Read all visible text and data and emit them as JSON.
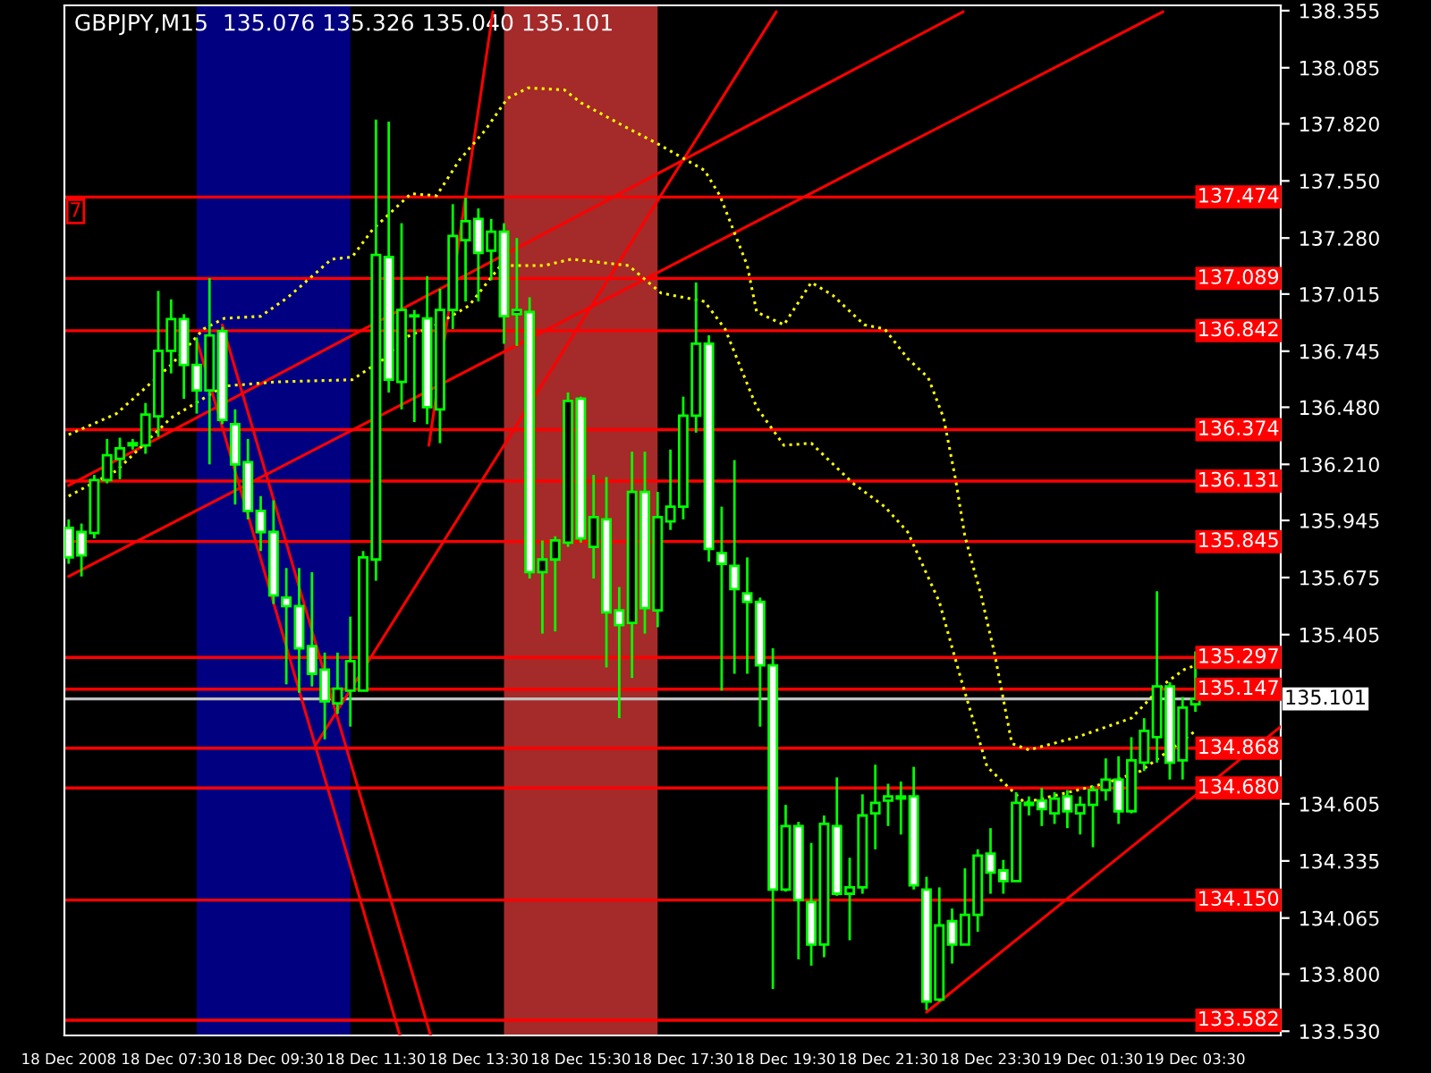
{
  "chart_data": {
    "type": "candlestick",
    "title": "GBPJPY,M15  135.076 135.326 135.040 135.101",
    "annotations": [
      "7"
    ],
    "xlim": [
      "2008-12-18T05:25",
      "2008-12-19T05:10"
    ],
    "xticks": [
      {
        "value": "2008-12-18T05:30",
        "label": "18 Dec 2008"
      },
      {
        "value": "2008-12-18T07:30",
        "label": "18 Dec 07:30"
      },
      {
        "value": "2008-12-18T09:30",
        "label": "18 Dec 09:30"
      },
      {
        "value": "2008-12-18T11:30",
        "label": "18 Dec 11:30"
      },
      {
        "value": "2008-12-18T13:30",
        "label": "18 Dec 13:30"
      },
      {
        "value": "2008-12-18T15:30",
        "label": "18 Dec 15:30"
      },
      {
        "value": "2008-12-18T17:30",
        "label": "18 Dec 17:30"
      },
      {
        "value": "2008-12-18T19:30",
        "label": "18 Dec 19:30"
      },
      {
        "value": "2008-12-18T21:30",
        "label": "18 Dec 21:30"
      },
      {
        "value": "2008-12-18T23:30",
        "label": "18 Dec 23:30"
      },
      {
        "value": "2008-12-19T01:30",
        "label": "19 Dec 01:30"
      },
      {
        "value": "2008-12-19T03:30",
        "label": "19 Dec 03:30"
      }
    ],
    "ylim": [
      133.51,
      138.38
    ],
    "yticks": [
      {
        "value": 138.355,
        "label": "138.355"
      },
      {
        "value": 138.085,
        "label": "138.085"
      },
      {
        "value": 137.82,
        "label": "137.820"
      },
      {
        "value": 137.55,
        "label": "137.550"
      },
      {
        "value": 137.28,
        "label": "137.280"
      },
      {
        "value": 137.015,
        "label": "137.015"
      },
      {
        "value": 136.745,
        "label": "136.745"
      },
      {
        "value": 136.48,
        "label": "136.480"
      },
      {
        "value": 136.21,
        "label": "136.210"
      },
      {
        "value": 135.945,
        "label": "135.945"
      },
      {
        "value": 135.675,
        "label": "135.675"
      },
      {
        "value": 135.405,
        "label": "135.405"
      },
      {
        "value": 134.605,
        "label": "134.605"
      },
      {
        "value": 134.335,
        "label": "134.335"
      },
      {
        "value": 134.065,
        "label": "134.065"
      },
      {
        "value": 133.8,
        "label": "133.800"
      },
      {
        "value": 133.53,
        "label": "133.530"
      }
    ],
    "grid": false,
    "legend": false,
    "bands": [
      {
        "axis": "x",
        "from": "2008-12-18T08:00",
        "to": "2008-12-18T11:00",
        "color": "#000080"
      },
      {
        "axis": "x",
        "from": "2008-12-18T14:00",
        "to": "2008-12-18T17:00",
        "color": "#a52a2a"
      }
    ],
    "ref_lines": [
      {
        "axis": "y",
        "value": 137.474,
        "label": "137.474",
        "color": "#ff0000"
      },
      {
        "axis": "y",
        "value": 137.089,
        "label": "137.089",
        "color": "#ff0000"
      },
      {
        "axis": "y",
        "value": 136.842,
        "label": "136.842",
        "color": "#ff0000"
      },
      {
        "axis": "y",
        "value": 136.374,
        "label": "136.374",
        "color": "#ff0000"
      },
      {
        "axis": "y",
        "value": 136.131,
        "label": "136.131",
        "color": "#ff0000"
      },
      {
        "axis": "y",
        "value": 135.845,
        "label": "135.845",
        "color": "#ff0000"
      },
      {
        "axis": "y",
        "value": 135.297,
        "label": "135.297",
        "color": "#ff0000"
      },
      {
        "axis": "y",
        "value": 135.147,
        "label": "135.147",
        "color": "#ff0000"
      },
      {
        "axis": "y",
        "value": 135.101,
        "label": "135.101",
        "color": "#c0c0c0"
      },
      {
        "axis": "y",
        "value": 134.868,
        "label": "134.868",
        "color": "#ff0000"
      },
      {
        "axis": "y",
        "value": 134.68,
        "label": "134.680",
        "color": "#ff0000"
      },
      {
        "axis": "y",
        "value": 134.15,
        "label": "134.150",
        "color": "#ff0000"
      },
      {
        "axis": "y",
        "value": 133.582,
        "label": "133.582",
        "color": "#ff0000"
      }
    ],
    "series": [
      {
        "color": "#00ff00",
        "x": [
          "2008-12-18T05:30",
          "2008-12-18T05:45",
          "2008-12-18T06:00",
          "2008-12-18T06:15",
          "2008-12-18T06:30",
          "2008-12-18T06:45",
          "2008-12-18T07:00",
          "2008-12-18T07:15",
          "2008-12-18T07:30",
          "2008-12-18T07:45",
          "2008-12-18T08:00",
          "2008-12-18T08:15",
          "2008-12-18T08:30",
          "2008-12-18T08:45",
          "2008-12-18T09:00",
          "2008-12-18T09:15",
          "2008-12-18T09:30",
          "2008-12-18T09:45",
          "2008-12-18T10:00",
          "2008-12-18T10:15",
          "2008-12-18T10:30",
          "2008-12-18T10:45",
          "2008-12-18T11:00",
          "2008-12-18T11:15",
          "2008-12-18T11:30",
          "2008-12-18T11:45",
          "2008-12-18T12:00",
          "2008-12-18T12:15",
          "2008-12-18T12:30",
          "2008-12-18T12:45",
          "2008-12-18T13:00",
          "2008-12-18T13:15",
          "2008-12-18T13:30",
          "2008-12-18T13:45",
          "2008-12-18T14:00",
          "2008-12-18T14:15",
          "2008-12-18T14:30",
          "2008-12-18T14:45",
          "2008-12-18T15:00",
          "2008-12-18T15:15",
          "2008-12-18T15:30",
          "2008-12-18T15:45",
          "2008-12-18T16:00",
          "2008-12-18T16:15",
          "2008-12-18T16:30",
          "2008-12-18T16:45",
          "2008-12-18T17:00",
          "2008-12-18T17:15",
          "2008-12-18T17:30",
          "2008-12-18T17:45",
          "2008-12-18T18:00",
          "2008-12-18T18:15",
          "2008-12-18T18:30",
          "2008-12-18T18:45",
          "2008-12-18T19:00",
          "2008-12-18T19:15",
          "2008-12-18T19:30",
          "2008-12-18T19:45",
          "2008-12-18T20:00",
          "2008-12-18T20:15",
          "2008-12-18T20:30",
          "2008-12-18T20:45",
          "2008-12-18T21:00",
          "2008-12-18T21:15",
          "2008-12-18T21:30",
          "2008-12-18T21:45",
          "2008-12-18T22:00",
          "2008-12-18T22:15",
          "2008-12-18T22:30",
          "2008-12-18T22:45",
          "2008-12-18T23:00",
          "2008-12-18T23:15",
          "2008-12-18T23:30",
          "2008-12-18T23:45",
          "2008-12-19T00:00",
          "2008-12-19T00:15",
          "2008-12-19T00:30",
          "2008-12-19T00:45",
          "2008-12-19T01:00",
          "2008-12-19T01:15",
          "2008-12-19T01:30",
          "2008-12-19T01:45",
          "2008-12-19T02:00",
          "2008-12-19T02:15",
          "2008-12-19T02:30",
          "2008-12-19T02:45",
          "2008-12-19T03:00",
          "2008-12-19T03:15",
          "2008-12-19T03:30"
        ],
        "ohlc": [
          [
            135.91,
            135.95,
            135.74,
            135.77
          ],
          [
            135.89,
            135.93,
            135.68,
            135.78
          ],
          [
            135.885,
            136.16,
            135.86,
            136.136
          ],
          [
            136.136,
            136.33,
            136.12,
            136.253
          ],
          [
            136.236,
            136.336,
            136.14,
            136.286
          ],
          [
            136.3,
            136.33,
            136.28,
            136.31
          ],
          [
            136.3,
            136.5,
            136.26,
            136.445
          ],
          [
            136.437,
            137.03,
            136.34,
            136.747
          ],
          [
            136.747,
            136.99,
            136.64,
            136.897
          ],
          [
            136.897,
            136.92,
            136.52,
            136.68
          ],
          [
            136.68,
            136.81,
            136.45,
            136.56
          ],
          [
            136.56,
            137.09,
            136.21,
            136.82
          ],
          [
            136.84,
            136.86,
            136.4,
            136.42
          ],
          [
            136.4,
            136.47,
            136.02,
            136.21
          ],
          [
            136.22,
            136.33,
            135.95,
            135.99
          ],
          [
            135.99,
            136.06,
            135.8,
            135.89
          ],
          [
            135.89,
            136.04,
            135.55,
            135.59
          ],
          [
            135.58,
            135.72,
            135.17,
            135.54
          ],
          [
            135.54,
            135.72,
            135.13,
            135.34
          ],
          [
            135.35,
            135.7,
            135.16,
            135.22
          ],
          [
            135.24,
            135.32,
            134.91,
            135.09
          ],
          [
            135.08,
            135.32,
            135.03,
            135.15
          ],
          [
            135.14,
            135.49,
            134.97,
            135.28
          ],
          [
            135.14,
            135.8,
            135.14,
            135.77
          ],
          [
            135.76,
            137.84,
            135.66,
            137.2
          ],
          [
            137.19,
            137.83,
            136.55,
            136.61
          ],
          [
            136.6,
            137.35,
            136.47,
            136.94
          ],
          [
            136.91,
            136.94,
            136.41,
            136.91
          ],
          [
            136.9,
            137.1,
            136.4,
            136.48
          ],
          [
            136.47,
            137.04,
            136.31,
            136.94
          ],
          [
            136.94,
            137.44,
            136.85,
            137.29
          ],
          [
            137.27,
            137.47,
            136.98,
            137.36
          ],
          [
            137.37,
            137.42,
            136.98,
            137.21
          ],
          [
            137.22,
            137.37,
            137.08,
            137.31
          ],
          [
            137.31,
            137.35,
            136.78,
            136.91
          ],
          [
            136.92,
            137.28,
            136.77,
            136.94
          ],
          [
            136.93,
            137.0,
            135.67,
            135.7
          ],
          [
            135.7,
            135.85,
            135.41,
            135.76
          ],
          [
            135.76,
            135.87,
            135.42,
            135.85
          ],
          [
            135.84,
            136.55,
            135.82,
            136.51
          ],
          [
            136.52,
            136.53,
            135.84,
            135.86
          ],
          [
            135.82,
            136.16,
            135.67,
            135.96
          ],
          [
            135.95,
            136.15,
            135.25,
            135.51
          ],
          [
            135.52,
            135.63,
            135.01,
            135.45
          ],
          [
            135.46,
            136.27,
            135.2,
            136.08
          ],
          [
            136.08,
            136.27,
            135.41,
            135.53
          ],
          [
            135.52,
            136.08,
            135.44,
            135.96
          ],
          [
            135.94,
            136.28,
            135.9,
            136.01
          ],
          [
            136.01,
            136.53,
            135.95,
            136.44
          ],
          [
            136.44,
            137.07,
            136.36,
            136.78
          ],
          [
            136.78,
            136.82,
            135.75,
            135.81
          ],
          [
            135.79,
            136.01,
            135.14,
            135.74
          ],
          [
            135.73,
            136.23,
            135.22,
            135.62
          ],
          [
            135.6,
            135.77,
            135.22,
            135.56
          ],
          [
            135.56,
            135.58,
            134.97,
            135.26
          ],
          [
            135.26,
            135.34,
            133.73,
            134.2
          ],
          [
            134.2,
            134.6,
            134.19,
            134.5
          ],
          [
            134.5,
            134.52,
            133.87,
            134.15
          ],
          [
            134.14,
            134.42,
            133.84,
            133.94
          ],
          [
            133.94,
            134.55,
            133.88,
            134.51
          ],
          [
            134.5,
            134.73,
            134.17,
            134.18
          ],
          [
            134.18,
            134.35,
            133.96,
            134.21
          ],
          [
            134.21,
            134.65,
            134.18,
            134.55
          ],
          [
            134.56,
            134.79,
            134.39,
            134.61
          ],
          [
            134.62,
            134.7,
            134.5,
            134.64
          ],
          [
            134.63,
            134.71,
            134.46,
            134.64
          ],
          [
            134.64,
            134.78,
            134.2,
            134.22
          ],
          [
            134.2,
            134.26,
            133.63,
            133.67
          ],
          [
            133.68,
            134.21,
            133.67,
            134.03
          ],
          [
            134.05,
            134.11,
            133.85,
            133.94
          ],
          [
            133.94,
            134.3,
            133.94,
            134.08
          ],
          [
            134.08,
            134.39,
            134.0,
            134.36
          ],
          [
            134.37,
            134.49,
            134.18,
            134.28
          ],
          [
            134.29,
            134.34,
            134.18,
            134.24
          ],
          [
            134.24,
            134.66,
            134.24,
            134.61
          ],
          [
            134.6,
            134.64,
            134.55,
            134.61
          ],
          [
            134.62,
            134.68,
            134.5,
            134.58
          ],
          [
            134.56,
            134.66,
            134.51,
            134.63
          ],
          [
            134.64,
            134.67,
            134.49,
            134.57
          ],
          [
            134.56,
            134.64,
            134.46,
            134.6
          ],
          [
            134.6,
            134.69,
            134.4,
            134.67
          ],
          [
            134.67,
            134.82,
            134.62,
            134.72
          ],
          [
            134.72,
            134.83,
            134.51,
            134.57
          ],
          [
            134.57,
            134.92,
            134.56,
            134.81
          ],
          [
            134.8,
            135.01,
            134.76,
            134.95
          ],
          [
            134.92,
            135.61,
            134.8,
            135.16
          ],
          [
            135.16,
            135.18,
            134.72,
            134.8
          ],
          [
            134.81,
            135.11,
            134.72,
            135.06
          ],
          [
            135.076,
            135.326,
            135.04,
            135.101
          ]
        ]
      },
      {
        "type": "line",
        "color": "#ff0000",
        "line_style": "solid",
        "x": [
          "2008-12-18T05:30",
          "2008-12-18T22:58"
        ],
        "values": [
          136.11,
          138.35
        ]
      },
      {
        "type": "line",
        "color": "#ff0000",
        "line_style": "solid",
        "x": [
          "2008-12-18T05:30",
          "2008-12-19T02:52"
        ],
        "values": [
          135.68,
          138.35
        ]
      },
      {
        "type": "line",
        "color": "#ff0000",
        "line_style": "solid",
        "x": [
          "2008-12-18T12:32",
          "2008-12-18T13:47"
        ],
        "values": [
          136.3,
          138.35
        ]
      },
      {
        "type": "line",
        "color": "#ff0000",
        "line_style": "solid",
        "x": [
          "2008-12-18T10:19",
          "2008-12-18T19:19"
        ],
        "values": [
          134.88,
          138.35
        ]
      },
      {
        "type": "line",
        "color": "#ff0000",
        "line_style": "solid",
        "x": [
          "2008-12-18T08:00",
          "2008-12-18T11:58"
        ],
        "values": [
          136.8,
          133.51
        ]
      },
      {
        "type": "line",
        "color": "#ff0000",
        "line_style": "solid",
        "x": [
          "2008-12-18T08:30",
          "2008-12-18T12:34"
        ],
        "values": [
          136.87,
          133.51
        ]
      },
      {
        "type": "line",
        "color": "#ff0000",
        "line_style": "solid",
        "x": [
          "2008-12-18T22:15",
          "2008-12-19T05:10"
        ],
        "values": [
          133.62,
          134.97
        ]
      },
      {
        "type": "line",
        "color": "#ffff00",
        "line_style": "dotted",
        "x": [
          "2008-12-18T05:30",
          "2008-12-18T06:26",
          "2008-12-18T07:30",
          "2008-12-18T08:08",
          "2008-12-18T08:32",
          "2008-12-18T09:15",
          "2008-12-18T09:47",
          "2008-12-18T10:38",
          "2008-12-18T11:02",
          "2008-12-18T11:26",
          "2008-12-18T12:11",
          "2008-12-18T12:41",
          "2008-12-18T13:08",
          "2008-12-18T13:38",
          "2008-12-18T14:04",
          "2008-12-18T14:28",
          "2008-12-18T15:11",
          "2008-12-18T15:30",
          "2008-12-18T16:20",
          "2008-12-18T16:58",
          "2008-12-18T17:55",
          "2008-12-18T18:13",
          "2008-12-18T18:45",
          "2008-12-18T18:56",
          "2008-12-18T19:28",
          "2008-12-18T20:00",
          "2008-12-18T20:25",
          "2008-12-18T21:02",
          "2008-12-18T21:26",
          "2008-12-18T21:53",
          "2008-12-18T22:17",
          "2008-12-18T22:35",
          "2008-12-18T22:49",
          "2008-12-18T23:00",
          "2008-12-18T23:19",
          "2008-12-18T23:35",
          "2008-12-18T23:55",
          "2008-12-19T00:15",
          "2008-12-19T01:11",
          "2008-12-19T02:15",
          "2008-12-19T02:53",
          "2008-12-19T03:17",
          "2008-12-19T03:30"
        ],
        "values": [
          136.35,
          136.45,
          136.68,
          136.85,
          136.9,
          136.91,
          137.0,
          137.18,
          137.19,
          137.32,
          137.49,
          137.48,
          137.65,
          137.79,
          137.94,
          137.99,
          137.98,
          137.92,
          137.81,
          137.73,
          137.6,
          137.48,
          137.15,
          136.93,
          136.87,
          137.07,
          137.01,
          136.87,
          136.85,
          136.71,
          136.62,
          136.43,
          136.14,
          135.87,
          135.59,
          135.31,
          134.89,
          134.86,
          134.92,
          135.01,
          135.17,
          135.24,
          135.26
        ]
      },
      {
        "type": "line",
        "color": "#ffff00",
        "line_style": "dotted",
        "x": [
          "2008-12-18T05:30",
          "2008-12-18T06:26",
          "2008-12-18T07:30",
          "2008-12-18T08:32",
          "2008-12-18T09:34",
          "2008-12-18T11:02",
          "2008-12-18T11:40",
          "2008-12-18T12:04",
          "2008-12-18T12:41",
          "2008-12-18T13:19",
          "2008-12-18T13:56",
          "2008-12-18T14:47",
          "2008-12-18T15:19",
          "2008-12-18T16:26",
          "2008-12-18T17:04",
          "2008-12-18T17:55",
          "2008-12-18T18:19",
          "2008-12-18T18:56",
          "2008-12-18T19:28",
          "2008-12-18T20:00",
          "2008-12-18T20:49",
          "2008-12-18T21:26",
          "2008-12-18T21:53",
          "2008-12-18T22:30",
          "2008-12-18T22:55",
          "2008-12-18T23:26",
          "2008-12-19T00:10",
          "2008-12-19T01:43",
          "2008-12-19T02:26",
          "2008-12-19T03:17",
          "2008-12-19T03:30"
        ],
        "values": [
          136.06,
          136.18,
          136.43,
          136.58,
          136.6,
          136.61,
          136.71,
          136.81,
          136.87,
          136.96,
          137.15,
          137.15,
          137.18,
          137.15,
          137.02,
          136.98,
          136.85,
          136.48,
          136.3,
          136.31,
          136.12,
          136.01,
          135.89,
          135.56,
          135.2,
          134.78,
          134.61,
          134.7,
          134.76,
          134.91,
          134.95
        ]
      }
    ]
  }
}
